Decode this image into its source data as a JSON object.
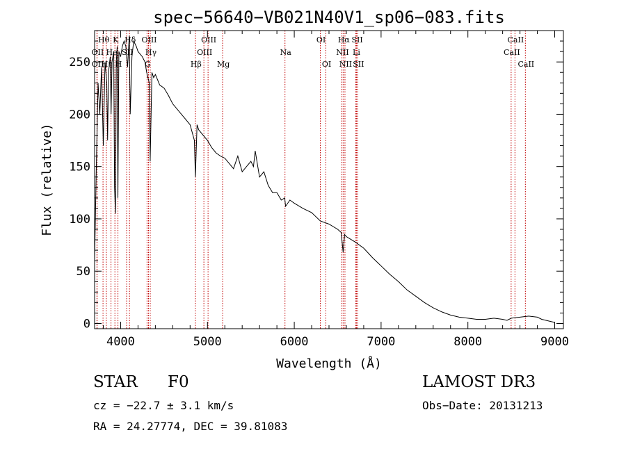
{
  "chart_data": {
    "type": "line",
    "title": "spec−56640−VB021N40V1_sp06−083.fits",
    "xlabel": "Wavelength (Å)",
    "ylabel": "Flux (relative)",
    "xlim": [
      3700,
      9100
    ],
    "ylim": [
      -5,
      280
    ],
    "xticks": [
      4000,
      5000,
      6000,
      7000,
      8000,
      9000
    ],
    "yticks": [
      0,
      50,
      100,
      150,
      200,
      250
    ],
    "series": [
      {
        "name": "flux",
        "x": [
          3700,
          3720,
          3740,
          3760,
          3780,
          3800,
          3820,
          3840,
          3850,
          3860,
          3880,
          3890,
          3900,
          3920,
          3930,
          3940,
          3950,
          3960,
          3968,
          3980,
          4000,
          4020,
          4040,
          4060,
          4080,
          4100,
          4110,
          4130,
          4150,
          4180,
          4200,
          4250,
          4280,
          4300,
          4330,
          4340,
          4360,
          4380,
          4400,
          4450,
          4500,
          4550,
          4600,
          4650,
          4700,
          4750,
          4800,
          4850,
          4861,
          4880,
          4900,
          4950,
          5000,
          5050,
          5100,
          5150,
          5200,
          5250,
          5300,
          5350,
          5400,
          5450,
          5500,
          5530,
          5550,
          5600,
          5650,
          5700,
          5750,
          5800,
          5850,
          5890,
          5900,
          5950,
          6000,
          6100,
          6200,
          6300,
          6400,
          6500,
          6540,
          6563,
          6580,
          6600,
          6700,
          6800,
          6900,
          7000,
          7100,
          7200,
          7300,
          7400,
          7500,
          7600,
          7700,
          7800,
          7900,
          8000,
          8100,
          8200,
          8300,
          8400,
          8450,
          8500,
          8600,
          8700,
          8800,
          8850,
          8900,
          8950,
          9000
        ],
        "values": [
          60,
          150,
          230,
          200,
          245,
          170,
          250,
          230,
          175,
          240,
          255,
          200,
          250,
          260,
          130,
          105,
          250,
          265,
          120,
          260,
          255,
          265,
          270,
          265,
          245,
          275,
          200,
          255,
          270,
          265,
          260,
          255,
          250,
          240,
          230,
          155,
          240,
          235,
          238,
          228,
          225,
          218,
          210,
          205,
          200,
          195,
          190,
          175,
          140,
          190,
          185,
          180,
          175,
          168,
          163,
          160,
          158,
          153,
          148,
          160,
          145,
          150,
          155,
          150,
          165,
          140,
          145,
          132,
          125,
          125,
          118,
          120,
          112,
          118,
          115,
          110,
          106,
          98,
          95,
          90,
          87,
          68,
          85,
          83,
          78,
          72,
          63,
          55,
          47,
          40,
          32,
          26,
          20,
          15,
          11,
          8,
          6,
          5,
          4,
          4,
          5,
          4,
          3,
          5,
          6,
          7,
          6,
          4,
          3,
          2,
          1
        ]
      }
    ],
    "line_markers": [
      {
        "name": "Hθ",
        "x": 3797,
        "row": 0
      },
      {
        "name": "OII",
        "x": 3727,
        "row": 1
      },
      {
        "name": "OII",
        "x": 3729,
        "row": 2
      },
      {
        "name": "Hη",
        "x": 3835,
        "row": 2
      },
      {
        "name": "He",
        "x": 3889,
        "row": 1
      },
      {
        "name": "K",
        "x": 3934,
        "row": 0
      },
      {
        "name": "H",
        "x": 3969,
        "row": 2
      },
      {
        "name": "SII",
        "x": 4069,
        "row": 1
      },
      {
        "name": "Hδ",
        "x": 4102,
        "row": 0
      },
      {
        "name": "OIII",
        "x": 4321,
        "row": 0
      },
      {
        "name": "Hγ",
        "x": 4341,
        "row": 1
      },
      {
        "name": "G",
        "x": 4304,
        "row": 2
      },
      {
        "name": "Hβ",
        "x": 4861,
        "row": 2
      },
      {
        "name": "OIII",
        "x": 4959,
        "row": 1
      },
      {
        "name": "OIII",
        "x": 5007,
        "row": 0
      },
      {
        "name": "Mg",
        "x": 5175,
        "row": 2
      },
      {
        "name": "Na",
        "x": 5893,
        "row": 1
      },
      {
        "name": "OI",
        "x": 6300,
        "row": 0
      },
      {
        "name": "OI",
        "x": 6364,
        "row": 2
      },
      {
        "name": "Hα",
        "x": 6563,
        "row": 0
      },
      {
        "name": "NII",
        "x": 6548,
        "row": 1
      },
      {
        "name": "NII",
        "x": 6584,
        "row": 2
      },
      {
        "name": "SII",
        "x": 6717,
        "row": 0
      },
      {
        "name": "SII",
        "x": 6731,
        "row": 2
      },
      {
        "name": "Li",
        "x": 6708,
        "row": 1
      },
      {
        "name": "CaII",
        "x": 8498,
        "row": 1
      },
      {
        "name": "CaII",
        "x": 8542,
        "row": 0
      },
      {
        "name": "CaII",
        "x": 8662,
        "row": 2
      }
    ]
  },
  "footer": {
    "object_class": "STAR",
    "subclass": "F0",
    "survey": "LAMOST DR3",
    "redshift": "cz = −22.7 ± 3.1 km/s",
    "obs_date": "Obs−Date: 20131213",
    "coords": "RA =  24.27774, DEC =  39.81083"
  },
  "colors": {
    "axis": "#000000",
    "spectrum": "#000000",
    "marker_line": "#c00000",
    "background": "#ffffff"
  }
}
